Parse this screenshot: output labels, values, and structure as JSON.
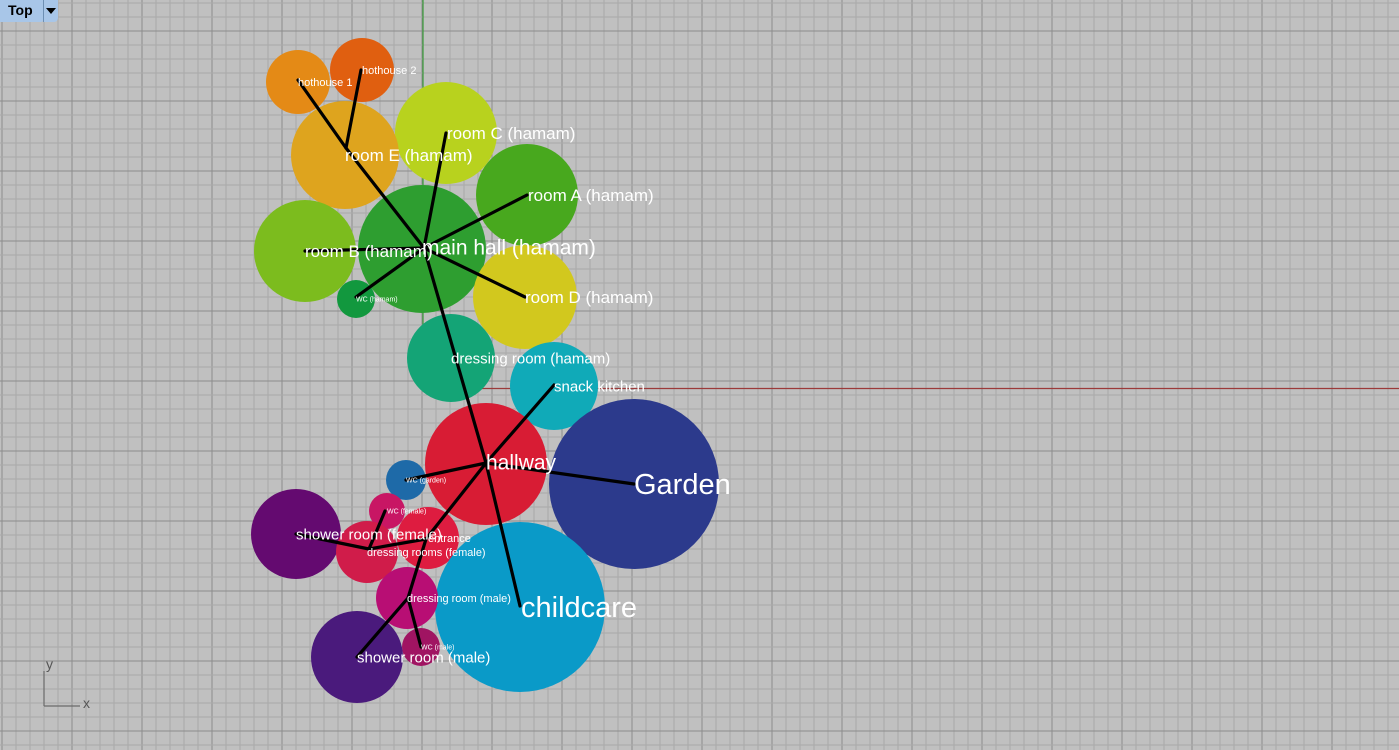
{
  "viewport": {
    "name": "Top",
    "axis_x_label": "x",
    "axis_y_label": "y"
  },
  "rooms": [
    {
      "id": "hothouse1",
      "label": "hothouse 1",
      "color": "#e48a16"
    },
    {
      "id": "hothouse2",
      "label": "hothouse 2",
      "color": "#e05f10"
    },
    {
      "id": "roomC",
      "label": "room C (hamam)",
      "color": "#b8d21e"
    },
    {
      "id": "roomE",
      "label": "room E (hamam)",
      "color": "#dea41e"
    },
    {
      "id": "roomA",
      "label": "room A (hamam)",
      "color": "#48a81e"
    },
    {
      "id": "roomB",
      "label": "room B (hamam)",
      "color": "#7cbc1e"
    },
    {
      "id": "mainhall",
      "label": "main hall (hamam)",
      "color": "#2e9e30"
    },
    {
      "id": "roomD",
      "label": "room D (hamam)",
      "color": "#d2c81e"
    },
    {
      "id": "wcHamam",
      "label": "WC (hamam)",
      "color": "#12983e"
    },
    {
      "id": "dressingHamam",
      "label": "dressing room (hamam)",
      "color": "#14a476"
    },
    {
      "id": "snack",
      "label": "snack kitchen",
      "color": "#10aab8"
    },
    {
      "id": "garden",
      "label": "Garden",
      "color": "#2c3a8c"
    },
    {
      "id": "hallway",
      "label": "hallway",
      "color": "#d81c34"
    },
    {
      "id": "wcGarden",
      "label": "WC (garden)",
      "color": "#1e6aa8"
    },
    {
      "id": "wcFemale",
      "label": "WC (female)",
      "color": "#c81664"
    },
    {
      "id": "entrance",
      "label": "entrance",
      "color": "#de1c40"
    },
    {
      "id": "showerFemale",
      "label": "shower room (female)",
      "color": "#640a70"
    },
    {
      "id": "dressingFemale",
      "label": "dressing rooms  (female)",
      "color": "#d01c4a"
    },
    {
      "id": "childcare",
      "label": "childcare",
      "color": "#0a9ac8"
    },
    {
      "id": "dressingMale",
      "label": "dressing room (male)",
      "color": "#b80e74"
    },
    {
      "id": "wcMale",
      "label": "WC (male)",
      "color": "#a01462"
    },
    {
      "id": "showerMale",
      "label": "shower room (male)",
      "color": "#4a1a7c"
    }
  ],
  "connections": [
    [
      "hothouse1",
      "roomE"
    ],
    [
      "hothouse2",
      "roomE"
    ],
    [
      "roomE",
      "mainhall"
    ],
    [
      "roomC",
      "mainhall"
    ],
    [
      "roomA",
      "mainhall"
    ],
    [
      "roomB",
      "mainhall"
    ],
    [
      "roomD",
      "mainhall"
    ],
    [
      "wcHamam",
      "mainhall"
    ],
    [
      "mainhall",
      "hallway"
    ],
    [
      "snack",
      "hallway"
    ],
    [
      "garden",
      "hallway"
    ],
    [
      "wcGarden",
      "hallway"
    ],
    [
      "childcare",
      "hallway"
    ],
    [
      "entrance",
      "hallway"
    ],
    [
      "entrance",
      "dressingFemale"
    ],
    [
      "dressingFemale",
      "showerFemale"
    ],
    [
      "dressingFemale",
      "wcFemale"
    ],
    [
      "entrance",
      "dressingMale"
    ],
    [
      "dressingMale",
      "showerMale"
    ],
    [
      "dressingMale",
      "wcMale"
    ]
  ],
  "colors": {
    "background": "#c0c0c0",
    "grid_minor": "#a9a9a9",
    "grid_major": "#8c8c8c",
    "axis_x": "#9b3a3a",
    "axis_y": "#3a9b3a",
    "link": "#000000",
    "label": "#ffffff"
  }
}
